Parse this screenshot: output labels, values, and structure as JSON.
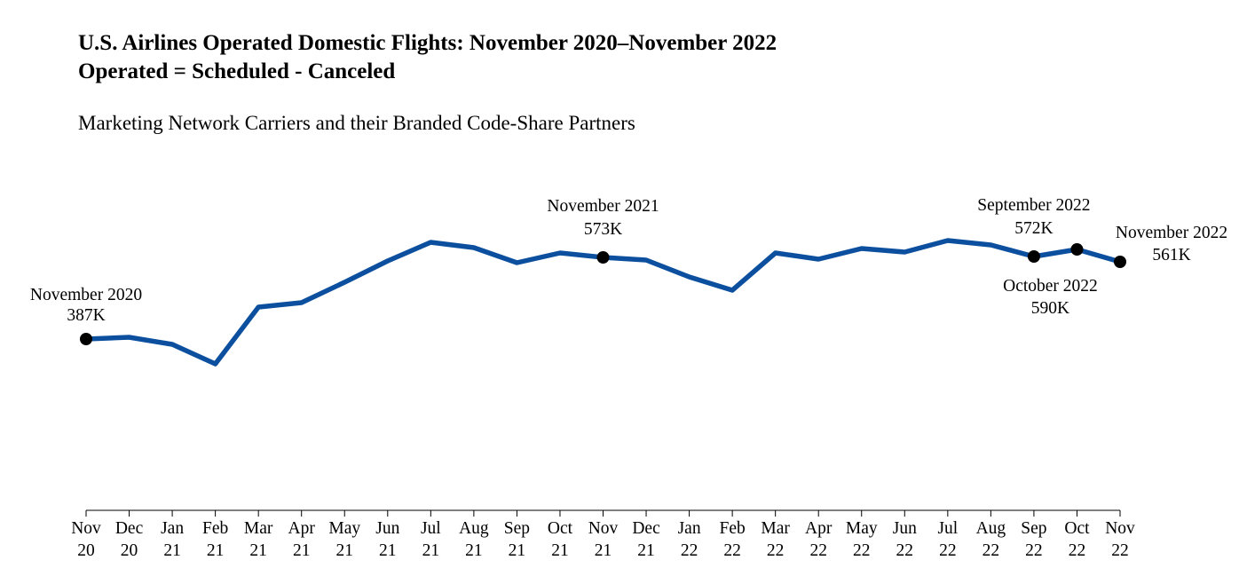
{
  "chart_data": {
    "type": "line",
    "title": "U.S. Airlines Operated Domestic Flights: November 2020–November 2022",
    "subtitle_line2": "Operated = Scheduled - Canceled",
    "subtitle": "Marketing Network Carriers and their Branded Code-Share Partners",
    "xlabel": "",
    "ylabel": "",
    "ylim": [
      295,
      625
    ],
    "grid": false,
    "line_color": "#0b4f9e",
    "marker_color": "#000000",
    "categories": [
      {
        "month": "Nov",
        "year": "20"
      },
      {
        "month": "Dec",
        "year": "20"
      },
      {
        "month": "Jan",
        "year": "21"
      },
      {
        "month": "Feb",
        "year": "21"
      },
      {
        "month": "Mar",
        "year": "21"
      },
      {
        "month": "Apr",
        "year": "21"
      },
      {
        "month": "May",
        "year": "21"
      },
      {
        "month": "Jun",
        "year": "21"
      },
      {
        "month": "Jul",
        "year": "21"
      },
      {
        "month": "Aug",
        "year": "21"
      },
      {
        "month": "Sep",
        "year": "21"
      },
      {
        "month": "Oct",
        "year": "21"
      },
      {
        "month": "Nov",
        "year": "21"
      },
      {
        "month": "Dec",
        "year": "21"
      },
      {
        "month": "Jan",
        "year": "22"
      },
      {
        "month": "Feb",
        "year": "22"
      },
      {
        "month": "Mar",
        "year": "22"
      },
      {
        "month": "Apr",
        "year": "22"
      },
      {
        "month": "May",
        "year": "22"
      },
      {
        "month": "Jun",
        "year": "22"
      },
      {
        "month": "Jul",
        "year": "22"
      },
      {
        "month": "Aug",
        "year": "22"
      },
      {
        "month": "Sep",
        "year": "22"
      },
      {
        "month": "Oct",
        "year": "22"
      },
      {
        "month": "Nov",
        "year": "22"
      }
    ],
    "values": [
      387,
      388,
      384,
      373,
      404,
      406,
      417,
      428,
      438,
      435,
      428,
      433,
      573,
      430,
      421,
      414,
      433,
      429,
      435,
      433,
      438,
      436,
      572,
      590,
      561
    ],
    "annotations": [
      {
        "index": 0,
        "lines": [
          "November 2020",
          "387K"
        ],
        "position": "above"
      },
      {
        "index": 12,
        "lines": [
          "November 2021",
          "573K"
        ],
        "position": "above"
      },
      {
        "index": 22,
        "lines": [
          "September 2022",
          "572K"
        ],
        "position": "above"
      },
      {
        "index": 23,
        "lines": [
          "October 2022",
          "590K"
        ],
        "position": "below"
      },
      {
        "index": 24,
        "lines": [
          "November 2022",
          "561K"
        ],
        "position": "right"
      }
    ]
  }
}
